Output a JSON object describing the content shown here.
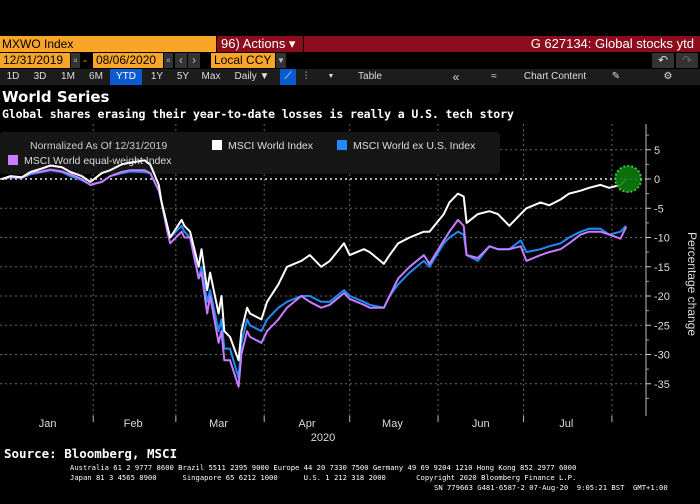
{
  "toolbar": {
    "ticker": "MXWO Index",
    "actions_label": "96) Actions ▾",
    "graph_title": "G 627134: Global stocks ytd",
    "start_date": "12/31/2019",
    "end_date": "08/06/2020",
    "date_sep": "-",
    "currency": "Local CCY",
    "periods": [
      "1D",
      "3D",
      "1M",
      "6M",
      "YTD",
      "1Y",
      "5Y",
      "Max"
    ],
    "active_period": "YTD",
    "frequency": "Daily ▼",
    "table_label": "Table",
    "chart_content_label": "Chart Content",
    "accent_color": "#f8a528",
    "red_color": "#8c0c1b",
    "active_color": "#0a5bd0"
  },
  "header": {
    "title": "World Series",
    "subtitle": "Global shares erasing their year-to-date losses is really a U.S. tech story"
  },
  "chart_data": {
    "type": "line",
    "legend_note": "Normalized As Of 12/31/2019",
    "legend_placement": "top-left",
    "ylabel": "Percentage change",
    "xlabel": "2020",
    "ylim": [
      -38,
      8
    ],
    "yticks": [
      5,
      0,
      -5,
      -10,
      -15,
      -20,
      -25,
      -30,
      -35
    ],
    "xlim": [
      "2019-12-31",
      "2020-08-08"
    ],
    "xtick_labels": [
      "Jan",
      "Feb",
      "Mar",
      "Apr",
      "May",
      "Jun",
      "Jul"
    ],
    "grid": true,
    "x": [
      "2019-12-31",
      "2020-01-03",
      "2020-01-07",
      "2020-01-10",
      "2020-01-14",
      "2020-01-17",
      "2020-01-21",
      "2020-01-24",
      "2020-01-28",
      "2020-01-31",
      "2020-02-04",
      "2020-02-07",
      "2020-02-11",
      "2020-02-14",
      "2020-02-19",
      "2020-02-21",
      "2020-02-24",
      "2020-02-25",
      "2020-02-27",
      "2020-02-28",
      "2020-03-03",
      "2020-03-04",
      "2020-03-06",
      "2020-03-09",
      "2020-03-10",
      "2020-03-12",
      "2020-03-13",
      "2020-03-16",
      "2020-03-17",
      "2020-03-18",
      "2020-03-20",
      "2020-03-23",
      "2020-03-24",
      "2020-03-26",
      "2020-03-27",
      "2020-03-31",
      "2020-04-02",
      "2020-04-06",
      "2020-04-09",
      "2020-04-14",
      "2020-04-17",
      "2020-04-21",
      "2020-04-24",
      "2020-04-29",
      "2020-05-01",
      "2020-05-06",
      "2020-05-08",
      "2020-05-13",
      "2020-05-15",
      "2020-05-18",
      "2020-05-22",
      "2020-05-27",
      "2020-05-29",
      "2020-06-03",
      "2020-06-05",
      "2020-06-08",
      "2020-06-10",
      "2020-06-11",
      "2020-06-15",
      "2020-06-19",
      "2020-06-22",
      "2020-06-26",
      "2020-06-30",
      "2020-07-02",
      "2020-07-07",
      "2020-07-10",
      "2020-07-14",
      "2020-07-17",
      "2020-07-21",
      "2020-07-24",
      "2020-07-28",
      "2020-07-31",
      "2020-08-04",
      "2020-08-06"
    ],
    "series": [
      {
        "name": "MSCI World ex U.S. Index",
        "color": "#1e8cff",
        "values": [
          0,
          0.3,
          0.2,
          0.8,
          1.2,
          1.5,
          1.2,
          0.5,
          -0.2,
          -1,
          -0.5,
          0.5,
          1,
          1.3,
          1.2,
          1,
          -2,
          -4,
          -8,
          -10,
          -8,
          -9,
          -10,
          -17,
          -15,
          -21,
          -19,
          -26,
          -24,
          -29,
          -29,
          -34,
          -28,
          -24,
          -25,
          -26,
          -24,
          -22,
          -21,
          -20,
          -20,
          -21,
          -21,
          -19,
          -20,
          -21,
          -21.5,
          -22,
          -20,
          -18,
          -16,
          -14,
          -15,
          -11,
          -10,
          -9,
          -9.5,
          -13,
          -14,
          -11.5,
          -12,
          -12,
          -10.5,
          -12.5,
          -12,
          -11.5,
          -11,
          -10,
          -9,
          -8.5,
          -8.5,
          -9.5,
          -9,
          -8
        ]
      },
      {
        "name": "MSCI World equal-weight Index",
        "color": "#c77dff",
        "values": [
          0,
          0.3,
          0.2,
          1,
          1.3,
          1.6,
          1.3,
          0.8,
          0,
          -1,
          -0.5,
          0.5,
          1.2,
          1.5,
          1.5,
          1,
          -2,
          -4,
          -9,
          -11,
          -9,
          -10,
          -10,
          -17,
          -16,
          -23,
          -20,
          -28,
          -26,
          -31,
          -31,
          -35.5,
          -30,
          -26,
          -27,
          -28,
          -26,
          -24,
          -22,
          -20,
          -21,
          -22,
          -21.5,
          -19.5,
          -20.5,
          -21.5,
          -22,
          -22,
          -20,
          -17,
          -15,
          -13,
          -14.5,
          -10.5,
          -9,
          -7,
          -8,
          -13,
          -13.5,
          -11.5,
          -12,
          -12,
          -11.5,
          -14,
          -13,
          -12.5,
          -12,
          -11,
          -9.5,
          -9,
          -9,
          -9.5,
          -10.2,
          -8.2
        ]
      },
      {
        "name": "MSCI World Index",
        "color": "#ffffff",
        "values": [
          0,
          0.5,
          0.3,
          1.2,
          1.8,
          2.3,
          2,
          1.2,
          0.5,
          -0.5,
          1,
          1.5,
          2.5,
          2.8,
          3.2,
          2.5,
          -1,
          -4,
          -8,
          -10,
          -7,
          -8,
          -9,
          -15,
          -12,
          -19,
          -16,
          -23,
          -20,
          -26,
          -27,
          -31,
          -26,
          -22,
          -23,
          -24,
          -21,
          -18,
          -15,
          -14,
          -13,
          -15,
          -14,
          -11,
          -13,
          -12,
          -12.5,
          -14.5,
          -13,
          -11,
          -10,
          -9,
          -9,
          -6,
          -4,
          -2.5,
          -3,
          -7.5,
          -6,
          -5.5,
          -6,
          -8,
          -6,
          -5,
          -4,
          -4.5,
          -3.5,
          -2.5,
          -2,
          -1.5,
          -1,
          -1.5,
          -1,
          0
        ]
      }
    ],
    "highlight_marker_color": "#1fa51f"
  },
  "footer": {
    "source": "Source: Bloomberg, MSCI",
    "line1": "Australia 61 2 9777 8600 Brazil 5511 2395 9000 Europe 44 20 7330 7500 Germany 49 69 9204 1210 Hong Kong 852 2977 6000",
    "line2": "Japan 81 3 4565 8900      Singapore 65 6212 1000      U.S. 1 212 318 2000       Copyright 2020 Bloomberg Finance L.P.",
    "line3": "SN 779663 G481-6587-2 07-Aug-20  9:05:21 BST  GMT+1:00"
  }
}
